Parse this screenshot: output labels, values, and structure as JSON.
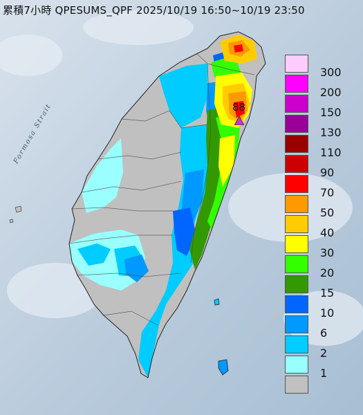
{
  "title": "累積7小時 QPESUMS_QPF 2025/10/19 16:50~10/19 23:50",
  "strait_label": "Formosa Strait",
  "peak_value": "88",
  "legend": [
    {
      "label": "300",
      "color": "#ffccff"
    },
    {
      "label": "200",
      "color": "#ff00ff"
    },
    {
      "label": "150",
      "color": "#cc00cc"
    },
    {
      "label": "130",
      "color": "#990099"
    },
    {
      "label": "110",
      "color": "#990000"
    },
    {
      "label": "90",
      "color": "#cc0000"
    },
    {
      "label": "70",
      "color": "#ff0000"
    },
    {
      "label": "50",
      "color": "#ff9900"
    },
    {
      "label": "40",
      "color": "#ffcc00"
    },
    {
      "label": "30",
      "color": "#ffff00"
    },
    {
      "label": "20",
      "color": "#33ff00"
    },
    {
      "label": "15",
      "color": "#339900"
    },
    {
      "label": "10",
      "color": "#0066ff"
    },
    {
      "label": "6",
      "color": "#0099ff"
    },
    {
      "label": "2",
      "color": "#00ccff"
    },
    {
      "label": "1",
      "color": "#99ffff"
    },
    {
      "label": "",
      "color": "#c0c0c0"
    }
  ]
}
